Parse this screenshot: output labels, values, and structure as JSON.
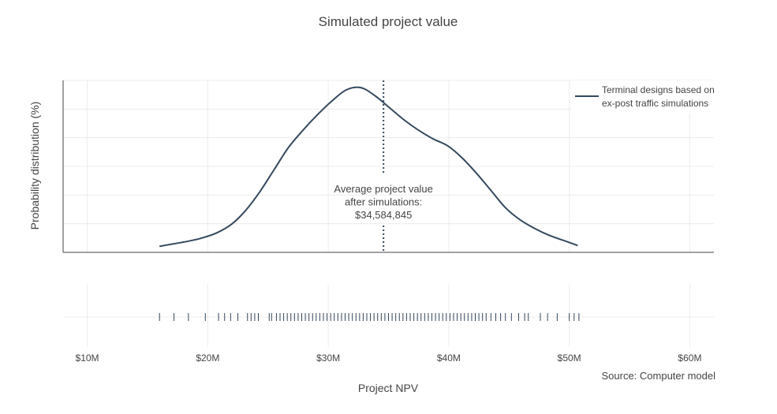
{
  "chart_data": {
    "type": "line",
    "title": "Simulated project value",
    "xlabel": "Project NPV",
    "ylabel": "Probability distribution (%)",
    "xlim": [
      8000000,
      62000000
    ],
    "x_ticks": [
      {
        "value": 10000000,
        "label": "$10M"
      },
      {
        "value": 20000000,
        "label": "$20M"
      },
      {
        "value": 30000000,
        "label": "$30M"
      },
      {
        "value": 40000000,
        "label": "$40M"
      },
      {
        "value": 50000000,
        "label": "$50M"
      },
      {
        "value": 60000000,
        "label": "$60M"
      }
    ],
    "y_tick_labels_shown": false,
    "grid": true,
    "series": [
      {
        "name": "Terminal designs based on ex-post traffic simulations",
        "legend_lines": [
          "Terminal designs based on",
          "ex-post traffic simulations"
        ],
        "color": "#34495e",
        "x": [
          16000000,
          17200000,
          18400000,
          19600000,
          20800000,
          22000000,
          23100000,
          24300000,
          25500000,
          26700000,
          27900000,
          29100000,
          30300000,
          31500000,
          32700000,
          33900000,
          35100000,
          36300000,
          37500000,
          38700000,
          39900000,
          41100000,
          42300000,
          43500000,
          44700000,
          45900000,
          47100000,
          48300000,
          49500000,
          50700000
        ],
        "y": [
          3.5,
          5.0,
          6.5,
          8.5,
          11.5,
          16.5,
          24.0,
          35.0,
          48.0,
          61.0,
          71.0,
          80.0,
          88.0,
          94.5,
          95.8,
          91.0,
          84.0,
          77.0,
          71.0,
          66.0,
          62.0,
          55.0,
          46.0,
          36.0,
          26.0,
          19.0,
          14.0,
          10.0,
          7.0,
          4.0
        ]
      }
    ],
    "mean_line": {
      "x": 34584845,
      "style": "dotted",
      "color": "#34495e",
      "annotation_lines": [
        "Average project value",
        "after simulations:",
        "$34,584,845"
      ]
    },
    "rug": {
      "color": "#34495e",
      "x": [
        16000000,
        17200000,
        18400000,
        19800000,
        20900000,
        21400000,
        21900000,
        22500000,
        23300000,
        23600000,
        23900000,
        24200000,
        25100000,
        25300000,
        25700000,
        26000000,
        26300000,
        26600000,
        26900000,
        27200000,
        27500000,
        27800000,
        28100000,
        28400000,
        28700000,
        29000000,
        29300000,
        29600000,
        29900000,
        30200000,
        30500000,
        30800000,
        31100000,
        31400000,
        31700000,
        32000000,
        32300000,
        32600000,
        32900000,
        33200000,
        33500000,
        33800000,
        34100000,
        34400000,
        34700000,
        35000000,
        35300000,
        35600000,
        35900000,
        36200000,
        36500000,
        36800000,
        37100000,
        37400000,
        37700000,
        38000000,
        38300000,
        38600000,
        38900000,
        39200000,
        39500000,
        39800000,
        40100000,
        40400000,
        40700000,
        41000000,
        41300000,
        41600000,
        41900000,
        42200000,
        42500000,
        42800000,
        43100000,
        43500000,
        43900000,
        44300000,
        44700000,
        45200000,
        45800000,
        46300000,
        46600000,
        47600000,
        48200000,
        49000000,
        50000000,
        50400000,
        50800000
      ]
    },
    "source": "Source: Computer model"
  }
}
